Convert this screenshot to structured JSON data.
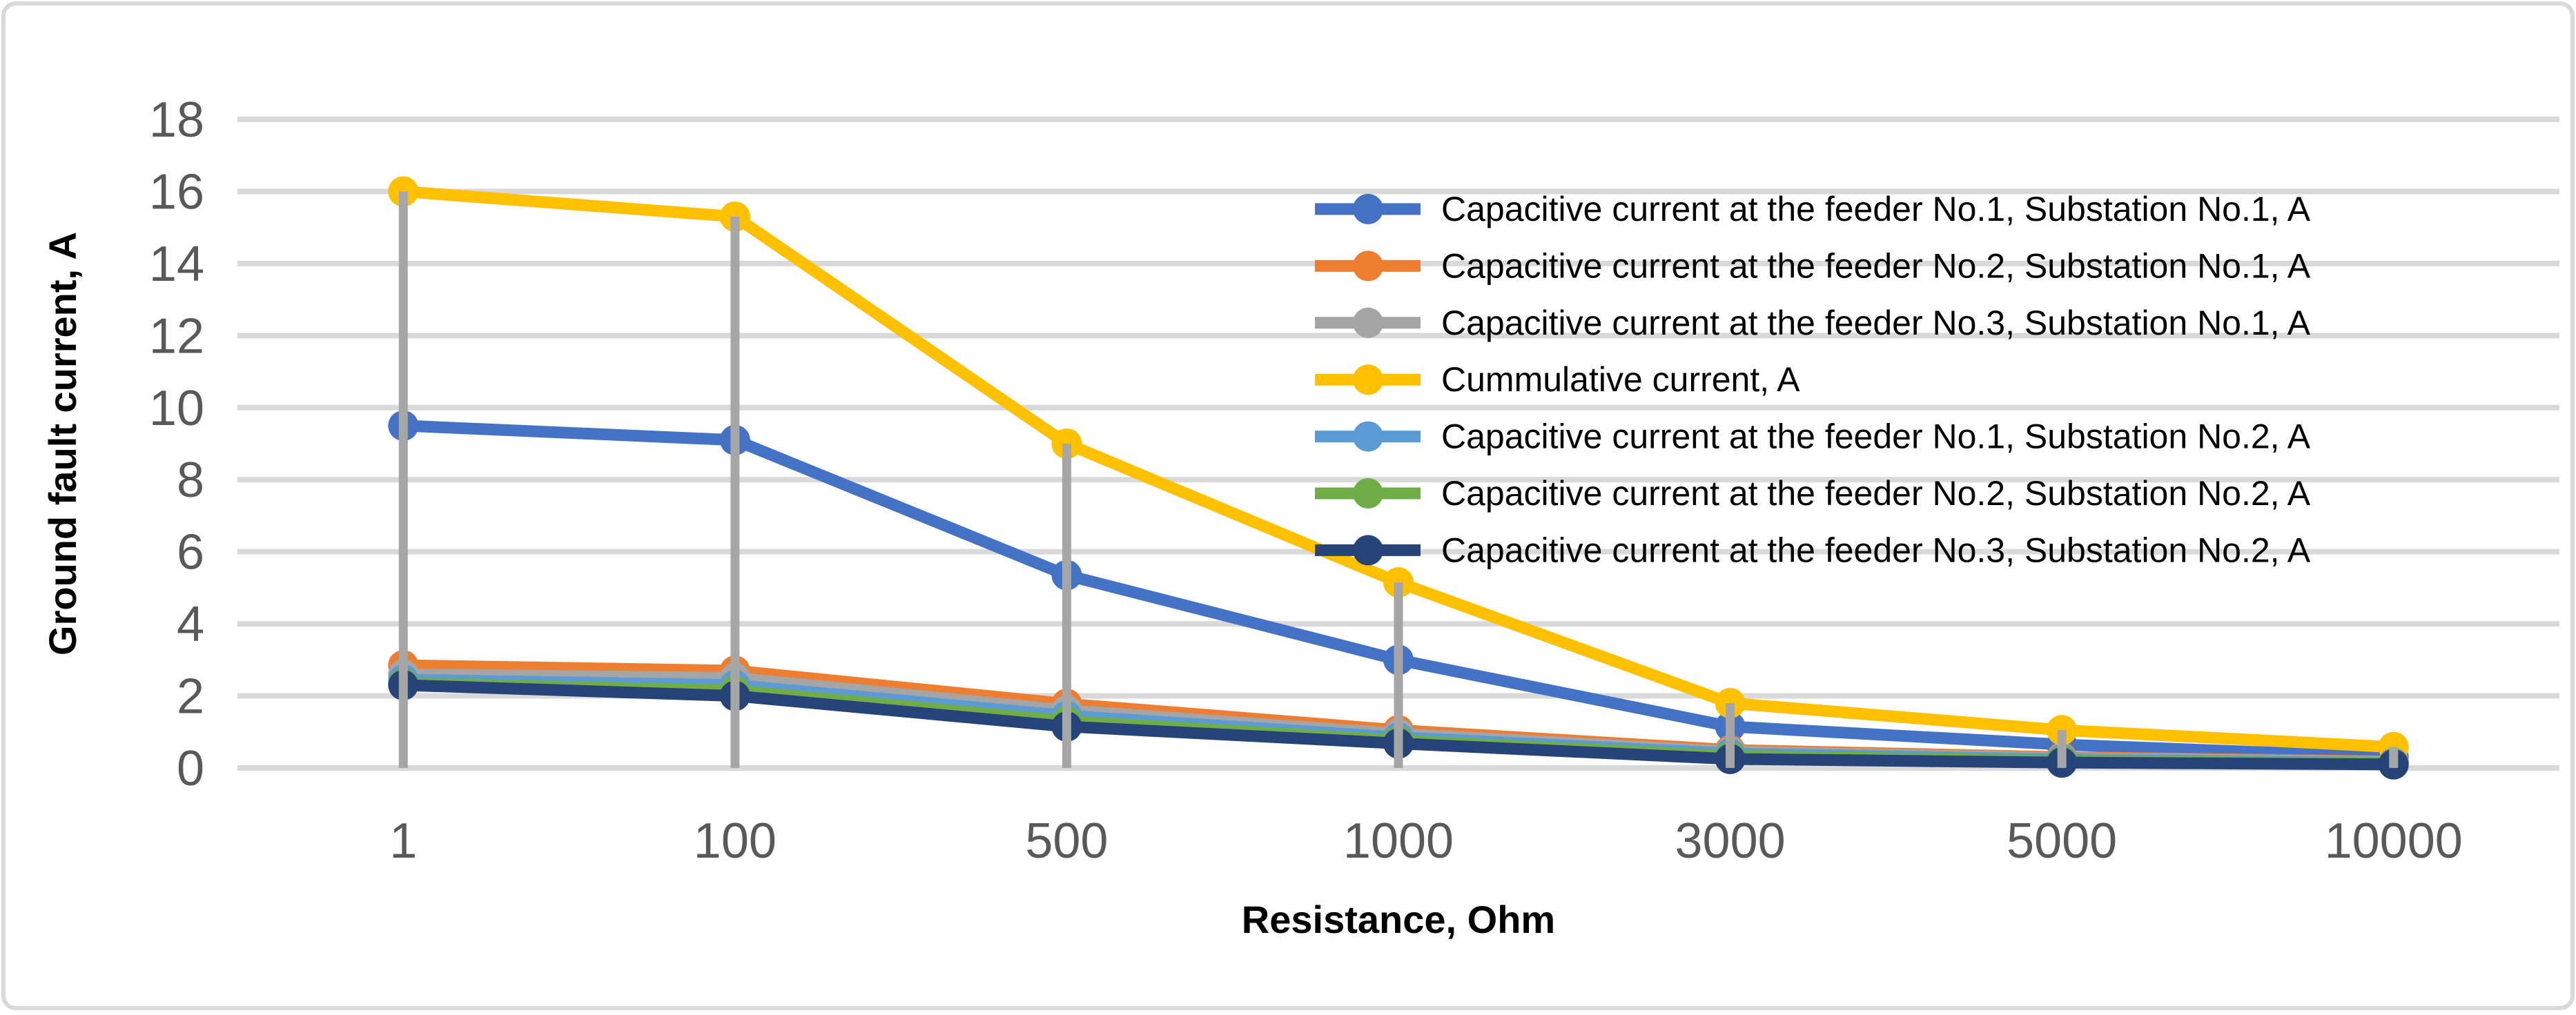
{
  "chart_data": {
    "type": "line",
    "title": "",
    "xlabel": "Resistance, Ohm",
    "ylabel": "Ground fault current, A",
    "categories": [
      "1",
      "100",
      "500",
      "1000",
      "3000",
      "5000",
      "10000"
    ],
    "y_ticks": [
      "0",
      "2",
      "4",
      "6",
      "8",
      "10",
      "12",
      "14",
      "16",
      "18"
    ],
    "ylim": [
      0,
      18
    ],
    "grid": true,
    "drop_lines": true,
    "legend_position": "inside-top-right",
    "series": [
      {
        "name": "Capacitive current at the feeder No.1, Substation No.1, A",
        "color": "#4472C4",
        "values": [
          9.5,
          9.1,
          5.35,
          3.0,
          1.15,
          0.65,
          0.3
        ]
      },
      {
        "name": "Capacitive current at the feeder No.2, Substation No.1, A",
        "color": "#ED7D31",
        "values": [
          2.85,
          2.7,
          1.78,
          1.05,
          0.5,
          0.3,
          0.18
        ]
      },
      {
        "name": "Capacitive current at the feeder No.3, Substation No.1, A",
        "color": "#A5A5A5",
        "values": [
          2.6,
          2.5,
          1.6,
          0.95,
          0.45,
          0.27,
          0.16
        ]
      },
      {
        "name": "Cummulative current, A",
        "color": "#FFC000",
        "values": [
          16.0,
          15.3,
          9.0,
          5.15,
          1.8,
          1.05,
          0.58
        ]
      },
      {
        "name": "Capacitive current at the feeder No.1, Substation No.2, A",
        "color": "#5B9BD5",
        "values": [
          2.45,
          2.3,
          1.45,
          0.85,
          0.4,
          0.24,
          0.14
        ]
      },
      {
        "name": "Capacitive current at the feeder No.2, Substation No.2, A",
        "color": "#70AD47",
        "values": [
          2.35,
          2.15,
          1.3,
          0.76,
          0.33,
          0.2,
          0.12
        ]
      },
      {
        "name": "Capacitive current at the feeder No.3, Substation No.2, A",
        "color": "#264478",
        "values": [
          2.3,
          2.0,
          1.15,
          0.68,
          0.25,
          0.15,
          0.1
        ]
      }
    ]
  },
  "colors": {
    "background": "#FFFFFF",
    "grid": "#D9D9D9",
    "border": "#D9D9D9",
    "tick_text": "#595959",
    "title_text": "#000000",
    "drop_line": "#A6A6A6"
  }
}
